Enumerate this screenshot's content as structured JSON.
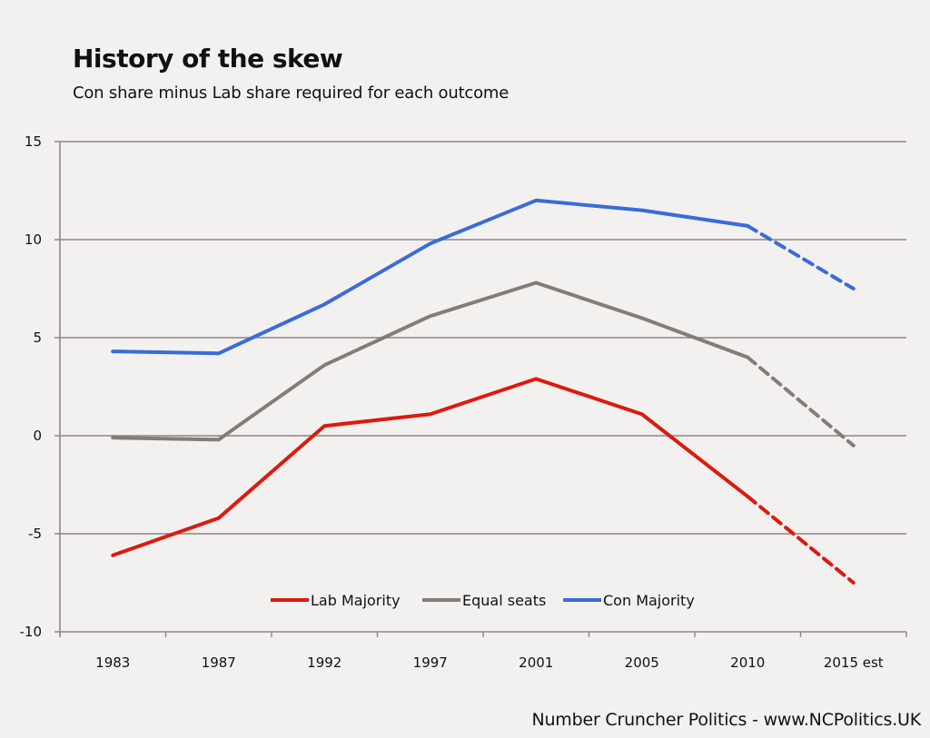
{
  "chart_data": {
    "type": "line",
    "title": "History of the skew",
    "subtitle": "Con share minus Lab share required for each outcome",
    "xlabel": "",
    "ylabel": "",
    "categories": [
      "1983",
      "1987",
      "1992",
      "1997",
      "2001",
      "2005",
      "2010",
      "2015 est"
    ],
    "ylim": [
      -10,
      15
    ],
    "yticks": [
      15,
      10,
      5,
      0,
      -5,
      -10
    ],
    "grid": true,
    "legend_position": "bottom-center",
    "estimate_from_index": 6,
    "series": [
      {
        "name": "Lab Majority",
        "color": "#dc1a0e",
        "values": [
          -6.1,
          -4.2,
          0.5,
          1.1,
          2.9,
          1.1,
          -3.1,
          -7.5
        ]
      },
      {
        "name": "Equal seats",
        "color": "#857c78",
        "values": [
          -0.1,
          -0.2,
          3.6,
          6.1,
          7.8,
          6.0,
          4.0,
          -0.5
        ]
      },
      {
        "name": "Con Majority",
        "color": "#3a6bd8",
        "values": [
          4.3,
          4.2,
          6.7,
          9.8,
          12.0,
          11.5,
          10.7,
          7.5
        ]
      }
    ],
    "note": "2015 est values shown as dashed projection"
  },
  "footer": "Number Cruncher Politics - www.NCPolitics.UK",
  "colors": {
    "background": "#f3f1f0",
    "grid": "#8e8682"
  }
}
